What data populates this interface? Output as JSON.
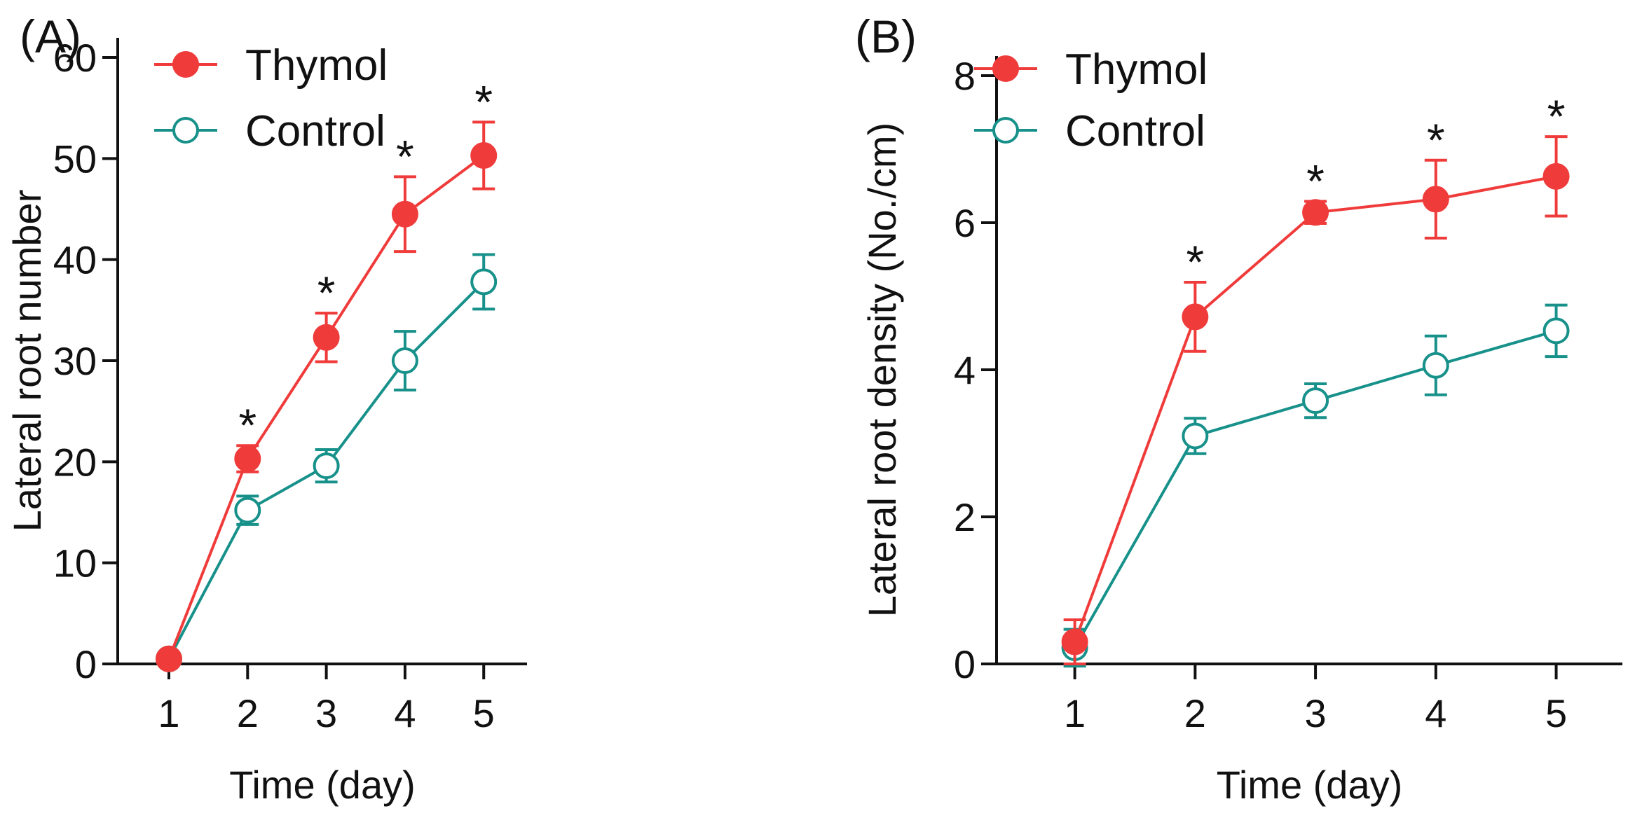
{
  "chart_data": [
    {
      "type": "line",
      "panel_label": "(A)",
      "title": "",
      "xlabel": "Time (day)",
      "ylabel": "Lateral root number",
      "x": [
        1,
        2,
        3,
        4,
        5
      ],
      "xticks": [
        "1",
        "2",
        "3",
        "4",
        "5"
      ],
      "xlim": [
        0.35,
        5.55
      ],
      "ylim": [
        0,
        60
      ],
      "yticks": [
        "0",
        "10",
        "20",
        "30",
        "40",
        "50",
        "60"
      ],
      "ytick_values": [
        0,
        10,
        20,
        30,
        40,
        50,
        60
      ],
      "legend": {
        "position": "top-left"
      },
      "series": [
        {
          "name": "Thymol",
          "color": "#f03b3b",
          "marker": "filled-circle",
          "values": [
            0.5,
            20.3,
            32.3,
            44.5,
            50.3
          ],
          "errors": [
            0.3,
            1.3,
            2.4,
            3.7,
            3.3
          ]
        },
        {
          "name": "Control",
          "color": "#17918a",
          "marker": "open-circle",
          "values": [
            0.5,
            15.2,
            19.6,
            30.0,
            37.8
          ],
          "errors": [
            0.3,
            1.4,
            1.6,
            2.9,
            2.7
          ]
        }
      ],
      "annotations": [
        {
          "x": 2,
          "text": "*"
        },
        {
          "x": 3,
          "text": "*"
        },
        {
          "x": 4,
          "text": "*"
        },
        {
          "x": 5,
          "text": "*"
        }
      ]
    },
    {
      "type": "line",
      "panel_label": "(B)",
      "title": "",
      "xlabel": "Time (day)",
      "ylabel": "Lateral root density (No./cm)",
      "x": [
        1,
        2,
        3,
        4,
        5
      ],
      "xticks": [
        "1",
        "2",
        "3",
        "4",
        "5"
      ],
      "xlim": [
        0.35,
        5.55
      ],
      "ylim": [
        0,
        8
      ],
      "yticks": [
        "0",
        "2",
        "4",
        "6",
        "8"
      ],
      "ytick_values": [
        0,
        2,
        4,
        6,
        8
      ],
      "legend": {
        "position": "top-left"
      },
      "series": [
        {
          "name": "Thymol",
          "color": "#f03b3b",
          "marker": "filled-circle",
          "values": [
            0.3,
            4.72,
            6.14,
            6.32,
            6.63
          ],
          "errors": [
            0.3,
            0.47,
            0.15,
            0.53,
            0.54
          ]
        },
        {
          "name": "Control",
          "color": "#17918a",
          "marker": "open-circle",
          "values": [
            0.22,
            3.1,
            3.58,
            4.06,
            4.53
          ],
          "errors": [
            0.25,
            0.24,
            0.23,
            0.4,
            0.35
          ]
        }
      ],
      "annotations": [
        {
          "x": 2,
          "text": "*"
        },
        {
          "x": 3,
          "text": "*"
        },
        {
          "x": 4,
          "text": "*"
        },
        {
          "x": 5,
          "text": "*"
        }
      ]
    }
  ]
}
